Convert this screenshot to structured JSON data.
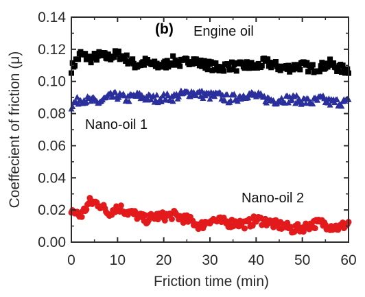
{
  "chart_data": {
    "type": "scatter",
    "panel_label": "(b)",
    "xlabel": "Friction time (min)",
    "ylabel": "Coeffecient of friction (μ)",
    "xlim": [
      0,
      60
    ],
    "ylim": [
      0.0,
      0.14
    ],
    "xticks": [
      "0",
      "10",
      "20",
      "30",
      "40",
      "50",
      "60"
    ],
    "yticks": [
      "0.00",
      "0.02",
      "0.04",
      "0.06",
      "0.08",
      "0.10",
      "0.12",
      "0.14"
    ],
    "grid": false,
    "series": [
      {
        "name": "Engine oil",
        "color": "#000000",
        "marker": "square",
        "x": [
          0,
          2,
          4,
          6,
          8,
          10,
          12,
          14,
          16,
          18,
          20,
          22,
          24,
          26,
          28,
          30,
          32,
          34,
          36,
          38,
          40,
          42,
          44,
          46,
          48,
          50,
          52,
          54,
          56,
          58,
          60
        ],
        "y": [
          0.108,
          0.117,
          0.114,
          0.116,
          0.115,
          0.117,
          0.114,
          0.11,
          0.112,
          0.11,
          0.11,
          0.113,
          0.111,
          0.114,
          0.111,
          0.11,
          0.108,
          0.11,
          0.109,
          0.11,
          0.109,
          0.112,
          0.11,
          0.108,
          0.109,
          0.11,
          0.108,
          0.109,
          0.111,
          0.108,
          0.107
        ]
      },
      {
        "name": "Nano-oil 1",
        "color": "#2a2f9c",
        "marker": "triangle",
        "x": [
          0,
          2,
          4,
          6,
          8,
          10,
          12,
          14,
          16,
          18,
          20,
          22,
          24,
          26,
          28,
          30,
          32,
          34,
          36,
          38,
          40,
          42,
          44,
          46,
          48,
          50,
          52,
          54,
          56,
          58,
          60
        ],
        "y": [
          0.085,
          0.089,
          0.088,
          0.087,
          0.09,
          0.091,
          0.089,
          0.091,
          0.09,
          0.089,
          0.09,
          0.09,
          0.092,
          0.093,
          0.092,
          0.091,
          0.091,
          0.089,
          0.09,
          0.092,
          0.091,
          0.089,
          0.088,
          0.089,
          0.089,
          0.088,
          0.087,
          0.089,
          0.087,
          0.087,
          0.087
        ]
      },
      {
        "name": "Nano-oil 2",
        "color": "#e31a1c",
        "marker": "circle",
        "x": [
          0,
          2,
          4,
          6,
          8,
          10,
          12,
          14,
          16,
          18,
          20,
          22,
          24,
          26,
          28,
          30,
          32,
          34,
          36,
          38,
          40,
          42,
          44,
          46,
          48,
          50,
          52,
          54,
          56,
          58,
          60
        ],
        "y": [
          0.02,
          0.016,
          0.025,
          0.024,
          0.018,
          0.022,
          0.019,
          0.017,
          0.014,
          0.016,
          0.016,
          0.017,
          0.015,
          0.013,
          0.01,
          0.014,
          0.013,
          0.012,
          0.012,
          0.011,
          0.014,
          0.013,
          0.011,
          0.01,
          0.008,
          0.009,
          0.011,
          0.012,
          0.01,
          0.009,
          0.012
        ]
      }
    ]
  }
}
